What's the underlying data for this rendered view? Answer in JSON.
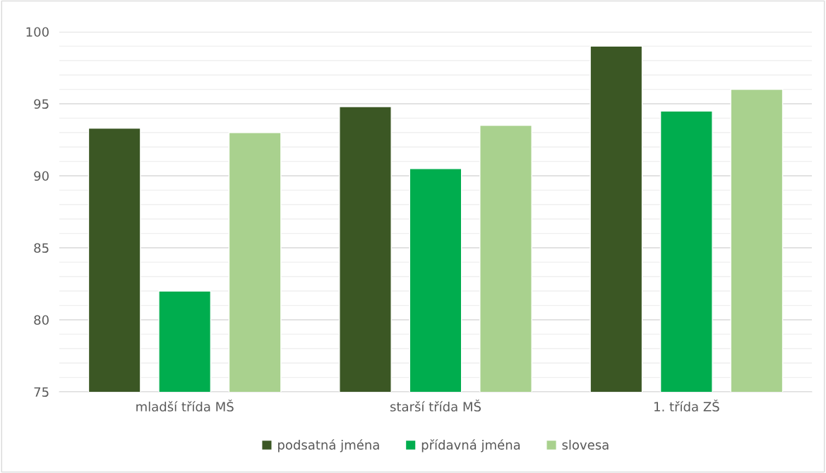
{
  "chart_data": {
    "type": "bar",
    "categories": [
      "mladší třída MŠ",
      "starší třída MŠ",
      "1. třída ZŠ"
    ],
    "series": [
      {
        "name": "podsatná jména",
        "color": "#3b5724",
        "values": [
          93.3,
          94.8,
          99
        ]
      },
      {
        "name": "přídavná jména",
        "color": "#00ad4e",
        "values": [
          82,
          90.5,
          94.5
        ]
      },
      {
        "name": "slovesa",
        "color": "#a9d18e",
        "values": [
          93,
          93.5,
          96
        ]
      }
    ],
    "ylim": [
      75,
      100
    ],
    "yticks": [
      75,
      {
        "value": 76,
        "label": null
      },
      {
        "value": 77,
        "label": null
      },
      {
        "value": 78,
        "label": null
      },
      {
        "value": 79,
        "label": null
      },
      80,
      {
        "value": 81,
        "label": null
      },
      {
        "value": 82,
        "label": null
      },
      {
        "value": 83,
        "label": null
      },
      {
        "value": 84,
        "label": null
      },
      85,
      {
        "value": 86,
        "label": null
      },
      {
        "value": 87,
        "label": null
      },
      {
        "value": 88,
        "label": null
      },
      {
        "value": 89,
        "label": null
      },
      90,
      {
        "value": 91,
        "label": null
      },
      {
        "value": 92,
        "label": null
      },
      {
        "value": 93,
        "label": null
      },
      {
        "value": 94,
        "label": null
      },
      95,
      {
        "value": 96,
        "label": null
      },
      {
        "value": 97,
        "label": null
      },
      {
        "value": 98,
        "label": null
      },
      {
        "value": 99,
        "label": null
      },
      100
    ],
    "grid": "y",
    "legend": "bottom"
  }
}
